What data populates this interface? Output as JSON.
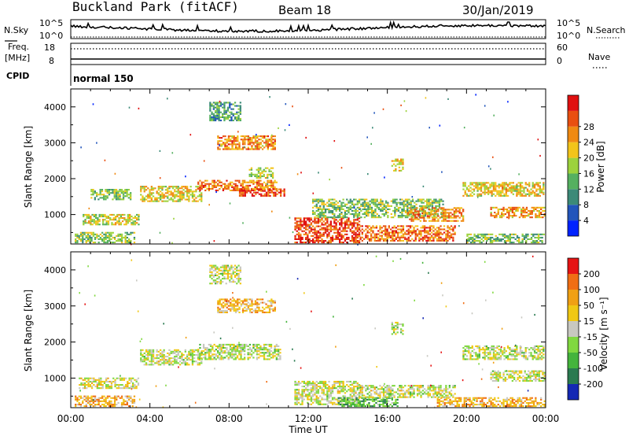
{
  "header": {
    "station": "Buckland Park (fitACF)",
    "beam": "Beam 18",
    "date": "30/Jan/2019"
  },
  "strip": {
    "nsky_label": "N.Sky",
    "nsearch_label": "N.Search",
    "freq_label_1": "Freq.",
    "freq_label_2": "[MHz]",
    "cpid_label": "CPID",
    "nave_label": "Nave",
    "left_ticks_top": [
      "10^5",
      "10^0"
    ],
    "right_ticks_top": [
      "10^5",
      "10^0"
    ],
    "left_ticks_freq": [
      "18",
      "8"
    ],
    "right_ticks_freq": [
      "60",
      "0"
    ],
    "cpid_text": "normal 150",
    "freq_dotted_value_mhz": 17,
    "freq_solid_value_mhz": 10
  },
  "time_axis": {
    "label": "Time UT",
    "ticks": [
      "00:00",
      "04:00",
      "08:00",
      "12:00",
      "16:00",
      "20:00",
      "00:00"
    ]
  },
  "chart_data": [
    {
      "type": "heatmap",
      "panel": "power",
      "ylabel": "Slant Range [km]",
      "yticks": [
        "1000",
        "2000",
        "3000",
        "4000"
      ],
      "ylim": [
        180,
        4500
      ],
      "xlim_hours": [
        0,
        24
      ],
      "colorbar": {
        "label": "Power [dB]",
        "ticks": [
          "4",
          "8",
          "12",
          "16",
          "20",
          "24",
          "28"
        ],
        "colors": [
          "#0022ff",
          "#2255bb",
          "#3c8a78",
          "#55b060",
          "#9cd23c",
          "#f2c41a",
          "#f08a12",
          "#e94f10",
          "#e01010"
        ]
      },
      "regions": [
        {
          "t0": 0.2,
          "t1": 3.2,
          "r0": 200,
          "r1": 500,
          "level": 0.45
        },
        {
          "t0": 0.6,
          "t1": 3.4,
          "r0": 700,
          "r1": 1000,
          "level": 0.55
        },
        {
          "t0": 1.0,
          "t1": 3.0,
          "r0": 1400,
          "r1": 1700,
          "level": 0.45
        },
        {
          "t0": 3.5,
          "t1": 6.6,
          "r0": 1350,
          "r1": 1800,
          "level": 0.6
        },
        {
          "t0": 6.4,
          "t1": 10.4,
          "r0": 1650,
          "r1": 1950,
          "level": 0.75
        },
        {
          "t0": 8.5,
          "t1": 10.8,
          "r0": 1500,
          "r1": 1700,
          "level": 0.85
        },
        {
          "t0": 7.4,
          "t1": 10.3,
          "r0": 2800,
          "r1": 3200,
          "level": 0.72
        },
        {
          "t0": 7.0,
          "t1": 8.6,
          "r0": 3600,
          "r1": 4100,
          "level": 0.35
        },
        {
          "t0": 9.0,
          "t1": 10.2,
          "r0": 2000,
          "r1": 2300,
          "level": 0.5
        },
        {
          "t0": 11.3,
          "t1": 14.6,
          "r0": 200,
          "r1": 900,
          "level": 0.88
        },
        {
          "t0": 14.6,
          "t1": 19.4,
          "r0": 250,
          "r1": 700,
          "level": 0.78
        },
        {
          "t0": 12.2,
          "t1": 18.8,
          "r0": 900,
          "r1": 1400,
          "level": 0.45
        },
        {
          "t0": 16.2,
          "t1": 16.8,
          "r0": 2200,
          "r1": 2550,
          "level": 0.62
        },
        {
          "t0": 17.0,
          "t1": 19.8,
          "r0": 800,
          "r1": 1200,
          "level": 0.72
        },
        {
          "t0": 19.8,
          "t1": 23.9,
          "r0": 1500,
          "r1": 1900,
          "level": 0.6
        },
        {
          "t0": 21.2,
          "t1": 23.9,
          "r0": 900,
          "r1": 1200,
          "level": 0.7
        },
        {
          "t0": 20.0,
          "t1": 23.9,
          "r0": 200,
          "r1": 450,
          "level": 0.42
        }
      ]
    },
    {
      "type": "heatmap",
      "panel": "velocity",
      "ylabel": "Slant Range [km]",
      "yticks": [
        "1000",
        "2000",
        "3000",
        "4000"
      ],
      "ylim": [
        180,
        4500
      ],
      "xlim_hours": [
        0,
        24
      ],
      "colorbar": {
        "label": "Velocity [m s⁻¹]",
        "ticks": [
          "200",
          "100",
          "50",
          "15",
          "-15",
          "-50",
          "-100",
          "-200"
        ],
        "colors": [
          "#1428b4",
          "#2a7a50",
          "#44b43c",
          "#80d840",
          "#c8c8c0",
          "#f0c814",
          "#f0a014",
          "#f06e14",
          "#e61414"
        ]
      },
      "regions": [
        {
          "t0": 0.2,
          "t1": 3.2,
          "r0": 200,
          "r1": 500,
          "level": 0.68
        },
        {
          "t0": 0.4,
          "t1": 3.4,
          "r0": 700,
          "r1": 1000,
          "level": 0.52
        },
        {
          "t0": 3.5,
          "t1": 6.6,
          "r0": 1350,
          "r1": 1800,
          "level": 0.5
        },
        {
          "t0": 6.4,
          "t1": 10.6,
          "r0": 1500,
          "r1": 1950,
          "level": 0.48
        },
        {
          "t0": 7.4,
          "t1": 10.3,
          "r0": 2800,
          "r1": 3200,
          "level": 0.66
        },
        {
          "t0": 7.0,
          "t1": 8.6,
          "r0": 3600,
          "r1": 4100,
          "level": 0.5
        },
        {
          "t0": 11.3,
          "t1": 14.6,
          "r0": 250,
          "r1": 900,
          "level": 0.5
        },
        {
          "t0": 13.5,
          "t1": 16.5,
          "r0": 200,
          "r1": 450,
          "level": 0.3
        },
        {
          "t0": 14.6,
          "t1": 19.4,
          "r0": 450,
          "r1": 800,
          "level": 0.5
        },
        {
          "t0": 16.2,
          "t1": 16.8,
          "r0": 2200,
          "r1": 2550,
          "level": 0.45
        },
        {
          "t0": 19.8,
          "t1": 23.9,
          "r0": 1500,
          "r1": 1900,
          "level": 0.48
        },
        {
          "t0": 21.2,
          "t1": 23.9,
          "r0": 900,
          "r1": 1200,
          "level": 0.5
        },
        {
          "t0": 18.5,
          "t1": 23.9,
          "r0": 200,
          "r1": 450,
          "level": 0.68
        }
      ]
    }
  ]
}
